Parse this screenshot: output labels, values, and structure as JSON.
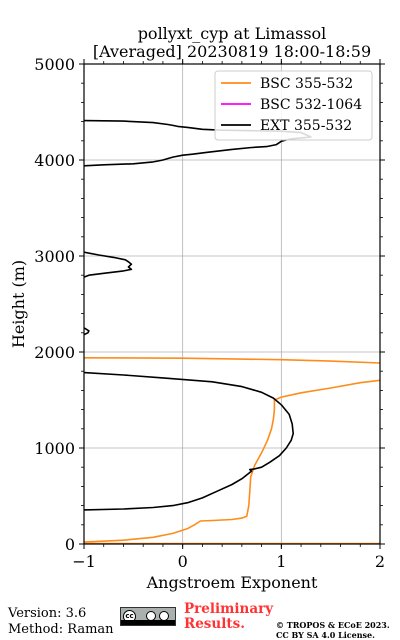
{
  "chart_data": {
    "type": "line",
    "title": [
      "pollyxt_cyp at Limassol",
      "[Averaged] 20230819 18:00-18:59"
    ],
    "xlabel": "Angstroem Exponent",
    "ylabel": "Height (m)",
    "xlim": [
      -1,
      2
    ],
    "ylim": [
      0,
      5000
    ],
    "xticks": [
      -1,
      0,
      1,
      2
    ],
    "yticks": [
      0,
      1000,
      2000,
      3000,
      4000,
      5000
    ],
    "xtick_labels": [
      "−1",
      "0",
      "1",
      "2"
    ],
    "ytick_labels": [
      "0",
      "1000",
      "2000",
      "3000",
      "4000",
      "5000"
    ],
    "grid": true,
    "legend_position": "top-right",
    "series": [
      {
        "name": "BSC 355-532",
        "color": "#ff8c1a",
        "segments": [
          [
            [
              -1.0,
              5
            ],
            [
              2.0,
              5
            ]
          ],
          [
            [
              -1.0,
              20
            ],
            [
              -0.6,
              40
            ],
            [
              -0.3,
              70
            ],
            [
              -0.1,
              110
            ],
            [
              0.05,
              160
            ],
            [
              0.12,
              200
            ],
            [
              0.18,
              240
            ],
            [
              0.3,
              245
            ],
            [
              0.5,
              255
            ],
            [
              0.6,
              270
            ],
            [
              0.65,
              290
            ],
            [
              0.67,
              400
            ],
            [
              0.68,
              550
            ],
            [
              0.69,
              700
            ],
            [
              0.73,
              820
            ],
            [
              0.8,
              950
            ],
            [
              0.86,
              1080
            ],
            [
              0.9,
              1200
            ],
            [
              0.92,
              1300
            ],
            [
              0.93,
              1400
            ],
            [
              0.93,
              1500
            ],
            [
              1.0,
              1530
            ],
            [
              1.2,
              1575
            ],
            [
              1.5,
              1625
            ],
            [
              1.8,
              1680
            ],
            [
              2.0,
              1705
            ]
          ],
          [
            [
              -1.0,
              1940
            ],
            [
              0.0,
              1935
            ],
            [
              0.5,
              1928
            ],
            [
              1.0,
              1920
            ],
            [
              1.5,
              1905
            ],
            [
              2.0,
              1885
            ]
          ]
        ]
      },
      {
        "name": "BSC 532-1064",
        "color": "#ff00ff",
        "segments": []
      },
      {
        "name": "EXT 355-532",
        "color": "#000000",
        "segments": [
          [
            [
              -1.0,
              355
            ],
            [
              -0.6,
              365
            ],
            [
              -0.3,
              380
            ],
            [
              -0.1,
              400
            ],
            [
              0.05,
              430
            ],
            [
              0.2,
              480
            ],
            [
              0.35,
              550
            ],
            [
              0.5,
              620
            ],
            [
              0.6,
              680
            ],
            [
              0.7,
              760
            ],
            [
              0.68,
              775
            ],
            [
              0.72,
              780
            ],
            [
              0.8,
              800
            ],
            [
              0.88,
              850
            ],
            [
              0.98,
              920
            ],
            [
              1.05,
              1000
            ],
            [
              1.1,
              1080
            ],
            [
              1.12,
              1150
            ],
            [
              1.11,
              1250
            ],
            [
              1.08,
              1350
            ],
            [
              1.0,
              1450
            ],
            [
              0.92,
              1520
            ],
            [
              0.8,
              1580
            ],
            [
              0.6,
              1640
            ],
            [
              0.3,
              1690
            ],
            [
              -0.2,
              1730
            ],
            [
              -0.6,
              1760
            ],
            [
              -1.0,
              1785
            ]
          ],
          [
            [
              -1.0,
              2180
            ],
            [
              -0.96,
              2200
            ],
            [
              -0.95,
              2220
            ],
            [
              -0.98,
              2240
            ],
            [
              -1.0,
              2250
            ]
          ],
          [
            [
              -1.0,
              2780
            ],
            [
              -0.95,
              2800
            ],
            [
              -0.8,
              2820
            ],
            [
              -0.6,
              2845
            ],
            [
              -0.52,
              2860
            ],
            [
              -0.55,
              2885
            ],
            [
              -0.52,
              2915
            ],
            [
              -0.55,
              2940
            ],
            [
              -0.58,
              2960
            ],
            [
              -0.7,
              2985
            ],
            [
              -0.85,
              3010
            ],
            [
              -1.0,
              3040
            ]
          ],
          [
            [
              -1.0,
              3940
            ],
            [
              -0.8,
              3950
            ],
            [
              -0.5,
              3960
            ],
            [
              -0.3,
              3980
            ],
            [
              -0.25,
              3990
            ],
            [
              -0.2,
              4000
            ],
            [
              -0.1,
              4030
            ],
            [
              0.0,
              4050
            ],
            [
              0.1,
              4060
            ],
            [
              0.25,
              4080
            ],
            [
              0.5,
              4110
            ],
            [
              0.7,
              4130
            ],
            [
              0.85,
              4140
            ],
            [
              0.95,
              4160
            ],
            [
              1.0,
              4195
            ],
            [
              1.05,
              4210
            ],
            [
              1.1,
              4220
            ],
            [
              1.2,
              4230
            ],
            [
              1.3,
              4240
            ],
            [
              1.2,
              4285
            ],
            [
              1.0,
              4300
            ],
            [
              0.7,
              4305
            ],
            [
              0.4,
              4310
            ],
            [
              0.2,
              4320
            ],
            [
              0.05,
              4340
            ],
            [
              -0.05,
              4350
            ],
            [
              -0.1,
              4360
            ],
            [
              -0.15,
              4370
            ],
            [
              -0.3,
              4390
            ],
            [
              -0.6,
              4405
            ],
            [
              -1.0,
              4410
            ]
          ]
        ]
      }
    ]
  },
  "footer": {
    "version": "Version: 3.6",
    "method": "Method: Raman",
    "cc_label": "cc",
    "preliminary": [
      "Preliminary",
      "Results."
    ],
    "copyright": [
      "© TROPOS & ECoE 2023.",
      "CC BY SA 4.0 License."
    ]
  }
}
